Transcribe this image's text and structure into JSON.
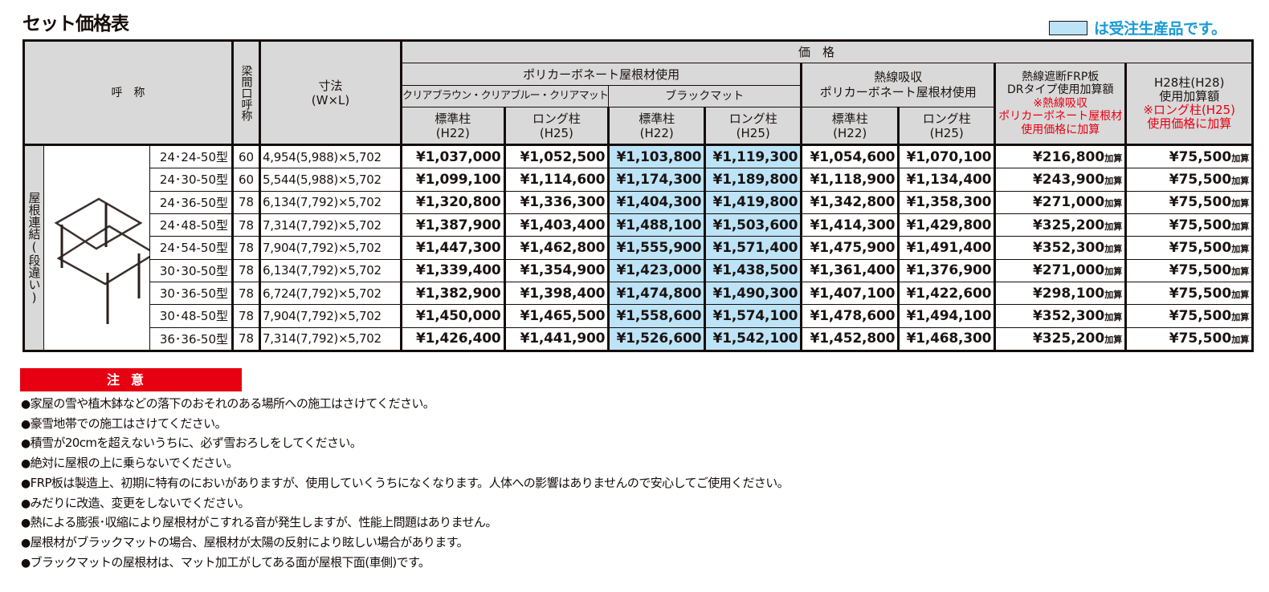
{
  "title": "セット価格表",
  "legend": {
    "swatch_color": "#bde3f7",
    "text": "は受注生産品です。",
    "text_color": "#1a9ad6"
  },
  "table": {
    "headers": {
      "name": "呼　称",
      "beam": "梁間口呼称",
      "dim_line1": "寸法",
      "dim_line2": "(W×L)",
      "price": "価　格",
      "poly": "ポリカーボネート屋根材使用",
      "clear": "クリアブラウン・クリアブルー・クリアマット",
      "black": "ブラックマット",
      "heat_line1": "熱線吸収",
      "heat_line2": "ポリカーボネート屋根材使用",
      "std_line1": "標準柱",
      "std_line2": "(H22)",
      "long_line1": "ロング柱",
      "long_line2": "(H25)",
      "frp_line1": "熱線遮断FRP板",
      "frp_line2": "DRタイプ使用加算額",
      "frp_note1": "※熱線吸収",
      "frp_note2": "ポリカーボネート屋根材",
      "frp_note3": "使用価格に加算",
      "h28_line1": "H28柱(H28)",
      "h28_line2": "使用加算額",
      "h28_note1": "※ロング柱(H25)",
      "h28_note2": "使用価格に加算"
    },
    "group_label": "屋根連結(段違い)",
    "image_icon": "carport-stepped-roof-illustration",
    "add_suffix": "加算",
    "highlight_color": "#bde3f7",
    "rows": [
      {
        "model": "24･24-50型",
        "beam": "60",
        "dim": "4,954(5,988)×5,702",
        "clear_std": "¥1,037,000",
        "clear_long": "¥1,052,500",
        "black_std": "¥1,103,800",
        "black_long": "¥1,119,300",
        "heat_std": "¥1,054,600",
        "heat_long": "¥1,070,100",
        "frp_add": "¥216,800",
        "h28_add": "¥75,500"
      },
      {
        "model": "24･30-50型",
        "beam": "60",
        "dim": "5,544(5,988)×5,702",
        "clear_std": "¥1,099,100",
        "clear_long": "¥1,114,600",
        "black_std": "¥1,174,300",
        "black_long": "¥1,189,800",
        "heat_std": "¥1,118,900",
        "heat_long": "¥1,134,400",
        "frp_add": "¥243,900",
        "h28_add": "¥75,500"
      },
      {
        "model": "24･36-50型",
        "beam": "78",
        "dim": "6,134(7,792)×5,702",
        "clear_std": "¥1,320,800",
        "clear_long": "¥1,336,300",
        "black_std": "¥1,404,300",
        "black_long": "¥1,419,800",
        "heat_std": "¥1,342,800",
        "heat_long": "¥1,358,300",
        "frp_add": "¥271,000",
        "h28_add": "¥75,500"
      },
      {
        "model": "24･48-50型",
        "beam": "78",
        "dim": "7,314(7,792)×5,702",
        "clear_std": "¥1,387,900",
        "clear_long": "¥1,403,400",
        "black_std": "¥1,488,100",
        "black_long": "¥1,503,600",
        "heat_std": "¥1,414,300",
        "heat_long": "¥1,429,800",
        "frp_add": "¥325,200",
        "h28_add": "¥75,500"
      },
      {
        "model": "24･54-50型",
        "beam": "78",
        "dim": "7,904(7,792)×5,702",
        "clear_std": "¥1,447,300",
        "clear_long": "¥1,462,800",
        "black_std": "¥1,555,900",
        "black_long": "¥1,571,400",
        "heat_std": "¥1,475,900",
        "heat_long": "¥1,491,400",
        "frp_add": "¥352,300",
        "h28_add": "¥75,500"
      },
      {
        "model": "30･30-50型",
        "beam": "78",
        "dim": "6,134(7,792)×5,702",
        "clear_std": "¥1,339,400",
        "clear_long": "¥1,354,900",
        "black_std": "¥1,423,000",
        "black_long": "¥1,438,500",
        "heat_std": "¥1,361,400",
        "heat_long": "¥1,376,900",
        "frp_add": "¥271,000",
        "h28_add": "¥75,500"
      },
      {
        "model": "30･36-50型",
        "beam": "78",
        "dim": "6,724(7,792)×5,702",
        "clear_std": "¥1,382,900",
        "clear_long": "¥1,398,400",
        "black_std": "¥1,474,800",
        "black_long": "¥1,490,300",
        "heat_std": "¥1,407,100",
        "heat_long": "¥1,422,600",
        "frp_add": "¥298,100",
        "h28_add": "¥75,500"
      },
      {
        "model": "30･48-50型",
        "beam": "78",
        "dim": "7,904(7,792)×5,702",
        "clear_std": "¥1,450,000",
        "clear_long": "¥1,465,500",
        "black_std": "¥1,558,600",
        "black_long": "¥1,574,100",
        "heat_std": "¥1,478,600",
        "heat_long": "¥1,494,100",
        "frp_add": "¥352,300",
        "h28_add": "¥75,500"
      },
      {
        "model": "36･36-50型",
        "beam": "78",
        "dim": "7,314(7,792)×5,702",
        "clear_std": "¥1,426,400",
        "clear_long": "¥1,441,900",
        "black_std": "¥1,526,600",
        "black_long": "¥1,542,100",
        "heat_std": "¥1,452,800",
        "heat_long": "¥1,468,300",
        "frp_add": "¥325,200",
        "h28_add": "¥75,500"
      }
    ]
  },
  "notice": {
    "heading": "注意",
    "heading_color": "#e60012",
    "bullet": "●",
    "items": [
      "家屋の雪や植木鉢などの落下のおそれのある場所への施工はさけてください。",
      "豪雪地帯での施工はさけてください。",
      "積雪が20cmを超えないうちに、必ず雪おろしをしてください。",
      "絶対に屋根の上に乗らないでください。",
      "FRP板は製造上、初期に特有のにおいがありますが、使用していくうちになくなります。人体への影響はありませんので安心してご使用ください。",
      "みだりに改造、変更をしないでください。",
      "熱による膨張･収縮により屋根材がこすれる音が発生しますが、性能上問題はありません。",
      "屋根材がブラックマットの場合、屋根材が太陽の反射により眩しい場合があります。",
      "ブラックマットの屋根材は、マット加工がしてある面が屋根下面(車側)です。"
    ]
  }
}
